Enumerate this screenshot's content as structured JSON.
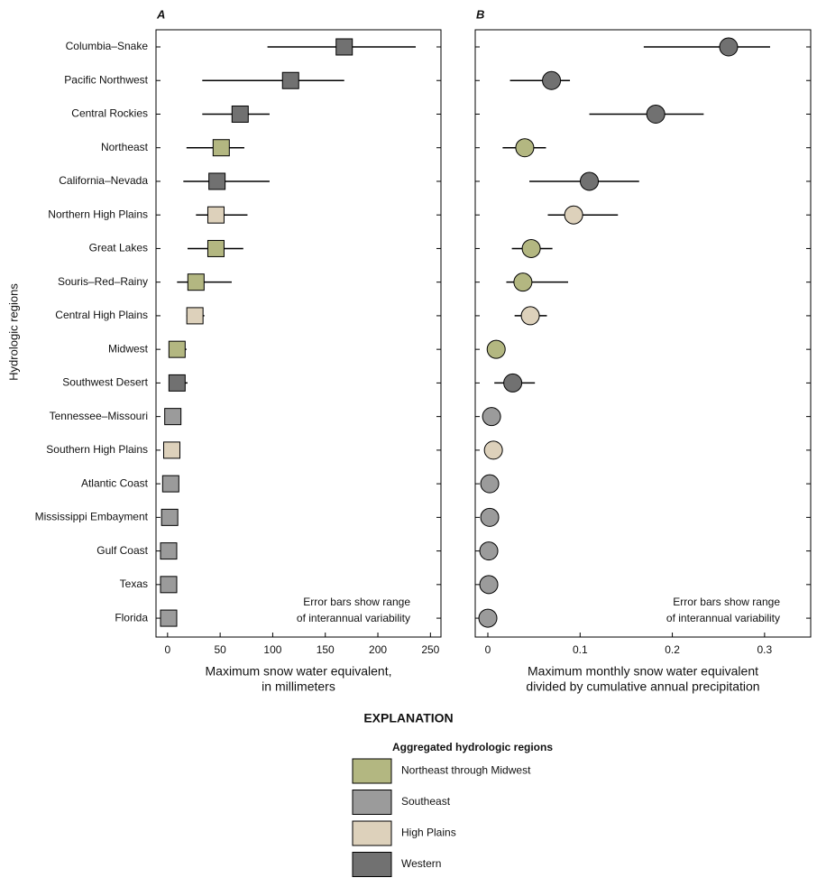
{
  "chart_data": [
    {
      "type": "dotplot",
      "panel": "A",
      "marker": "square",
      "ylabel": "Hydrologic regions",
      "categories": [
        "Columbia–Snake",
        "Pacific Northwest",
        "Central Rockies",
        "Northeast",
        "California–Nevada",
        "Northern High Plains",
        "Great Lakes",
        "Souris–Red–Rainy",
        "Central High Plains",
        "Midwest",
        "Southwest Desert",
        "Tennessee–Missouri",
        "Southern High Plains",
        "Atlantic Coast",
        "Mississippi Embayment",
        "Gulf Coast",
        "Texas",
        "Florida"
      ],
      "xlabel": [
        "Maximum snow water equivalent,",
        "in millimeters"
      ],
      "annotation": [
        "Error bars show range",
        "of interannual variability"
      ],
      "xlim": [
        -11,
        260
      ],
      "xticks": [
        0,
        50,
        100,
        150,
        200,
        250
      ],
      "series": [
        {
          "values": [
            null,
            null,
            null,
            51,
            null,
            null,
            46,
            27,
            null,
            9,
            null,
            null,
            null,
            null,
            null,
            null,
            null,
            null
          ],
          "low": [
            null,
            null,
            null,
            18,
            null,
            null,
            19,
            9,
            null,
            3,
            null,
            null,
            null,
            null,
            null,
            null,
            null,
            null
          ],
          "high": [
            null,
            null,
            null,
            73,
            null,
            null,
            72,
            61,
            null,
            18,
            null,
            null,
            null,
            null,
            null,
            null,
            null,
            null
          ]
        },
        {
          "values": [
            null,
            null,
            null,
            null,
            null,
            null,
            null,
            null,
            null,
            null,
            null,
            5,
            null,
            3,
            2,
            1,
            1,
            1
          ],
          "low": [
            null,
            null,
            null,
            null,
            null,
            null,
            null,
            null,
            null,
            null,
            null,
            null,
            null,
            null,
            null,
            null,
            null,
            null
          ],
          "high": [
            null,
            null,
            null,
            null,
            null,
            null,
            null,
            null,
            null,
            null,
            null,
            null,
            null,
            null,
            null,
            null,
            null,
            null
          ]
        },
        {
          "values": [
            null,
            null,
            null,
            null,
            null,
            46,
            null,
            null,
            26,
            null,
            null,
            null,
            4,
            null,
            null,
            null,
            null,
            null
          ],
          "low": [
            null,
            null,
            null,
            null,
            null,
            27,
            null,
            null,
            18,
            null,
            null,
            null,
            null,
            null,
            null,
            null,
            null,
            null
          ],
          "high": [
            null,
            null,
            null,
            null,
            null,
            76,
            null,
            null,
            35,
            null,
            null,
            null,
            null,
            null,
            null,
            null,
            null,
            null
          ]
        },
        {
          "values": [
            168,
            117,
            69,
            null,
            47,
            null,
            null,
            null,
            null,
            null,
            9,
            null,
            null,
            null,
            null,
            null,
            null,
            null
          ],
          "low": [
            95,
            33,
            33,
            null,
            15,
            null,
            null,
            null,
            null,
            null,
            1,
            null,
            null,
            null,
            null,
            null,
            null,
            null
          ],
          "high": [
            236,
            168,
            97,
            null,
            97,
            null,
            null,
            null,
            null,
            null,
            19,
            null,
            null,
            null,
            null,
            null,
            null,
            null
          ]
        }
      ]
    },
    {
      "type": "dotplot",
      "panel": "B",
      "marker": "circle",
      "xlabel": [
        "Maximum monthly snow water equivalent",
        "divided by cumulative annual precipitation"
      ],
      "annotation": [
        "Error bars show range",
        "of interannual variability"
      ],
      "xlim": [
        -0.0137,
        0.35
      ],
      "xticks": [
        0,
        0.1,
        0.2,
        0.3
      ],
      "series": [
        {
          "values": [
            null,
            null,
            null,
            0.04,
            null,
            null,
            0.047,
            0.038,
            null,
            0.009,
            null,
            null,
            null,
            null,
            null,
            null,
            null,
            null
          ],
          "low": [
            null,
            null,
            null,
            0.016,
            null,
            null,
            0.026,
            0.02,
            null,
            null,
            null,
            null,
            null,
            null,
            null,
            null,
            null,
            null
          ],
          "high": [
            null,
            null,
            null,
            0.063,
            null,
            null,
            0.07,
            0.087,
            null,
            null,
            null,
            null,
            null,
            null,
            null,
            null,
            null,
            null
          ]
        },
        {
          "values": [
            null,
            null,
            null,
            null,
            null,
            null,
            null,
            null,
            null,
            null,
            null,
            0.004,
            null,
            0.002,
            0.002,
            0.001,
            0.001,
            0.0
          ],
          "low": [
            null,
            null,
            null,
            null,
            null,
            null,
            null,
            null,
            null,
            null,
            null,
            null,
            null,
            null,
            null,
            null,
            null,
            null
          ],
          "high": [
            null,
            null,
            null,
            null,
            null,
            null,
            null,
            null,
            null,
            null,
            null,
            null,
            null,
            null,
            null,
            null,
            null,
            null
          ]
        },
        {
          "values": [
            null,
            null,
            null,
            null,
            null,
            0.093,
            null,
            null,
            0.046,
            null,
            null,
            null,
            0.006,
            null,
            null,
            null,
            null,
            null
          ],
          "low": [
            null,
            null,
            null,
            null,
            null,
            0.065,
            null,
            null,
            0.029,
            null,
            null,
            null,
            null,
            null,
            null,
            null,
            null,
            null
          ],
          "high": [
            null,
            null,
            null,
            null,
            null,
            0.141,
            null,
            null,
            0.064,
            null,
            null,
            null,
            null,
            null,
            null,
            null,
            null,
            null
          ]
        },
        {
          "values": [
            0.261,
            0.069,
            0.182,
            null,
            0.11,
            null,
            null,
            null,
            null,
            null,
            0.027,
            null,
            null,
            null,
            null,
            null,
            null,
            null
          ],
          "low": [
            0.169,
            0.024,
            0.11,
            null,
            0.045,
            null,
            null,
            null,
            null,
            null,
            0.007,
            null,
            null,
            null,
            null,
            null,
            null,
            null
          ],
          "high": [
            0.306,
            0.089,
            0.234,
            null,
            0.164,
            null,
            null,
            null,
            null,
            null,
            0.051,
            null,
            null,
            null,
            null,
            null,
            null,
            null
          ]
        }
      ]
    }
  ],
  "legend": {
    "title": "EXPLANATION",
    "subtitle": "Aggregated hydrologic regions",
    "entries": [
      {
        "name": "Northeast through Midwest",
        "color": "#b3b781"
      },
      {
        "name": "Southeast",
        "color": "#9b9b9b"
      },
      {
        "name": "High Plains",
        "color": "#ddd1bb"
      },
      {
        "name": "Western",
        "color": "#717171"
      }
    ]
  }
}
